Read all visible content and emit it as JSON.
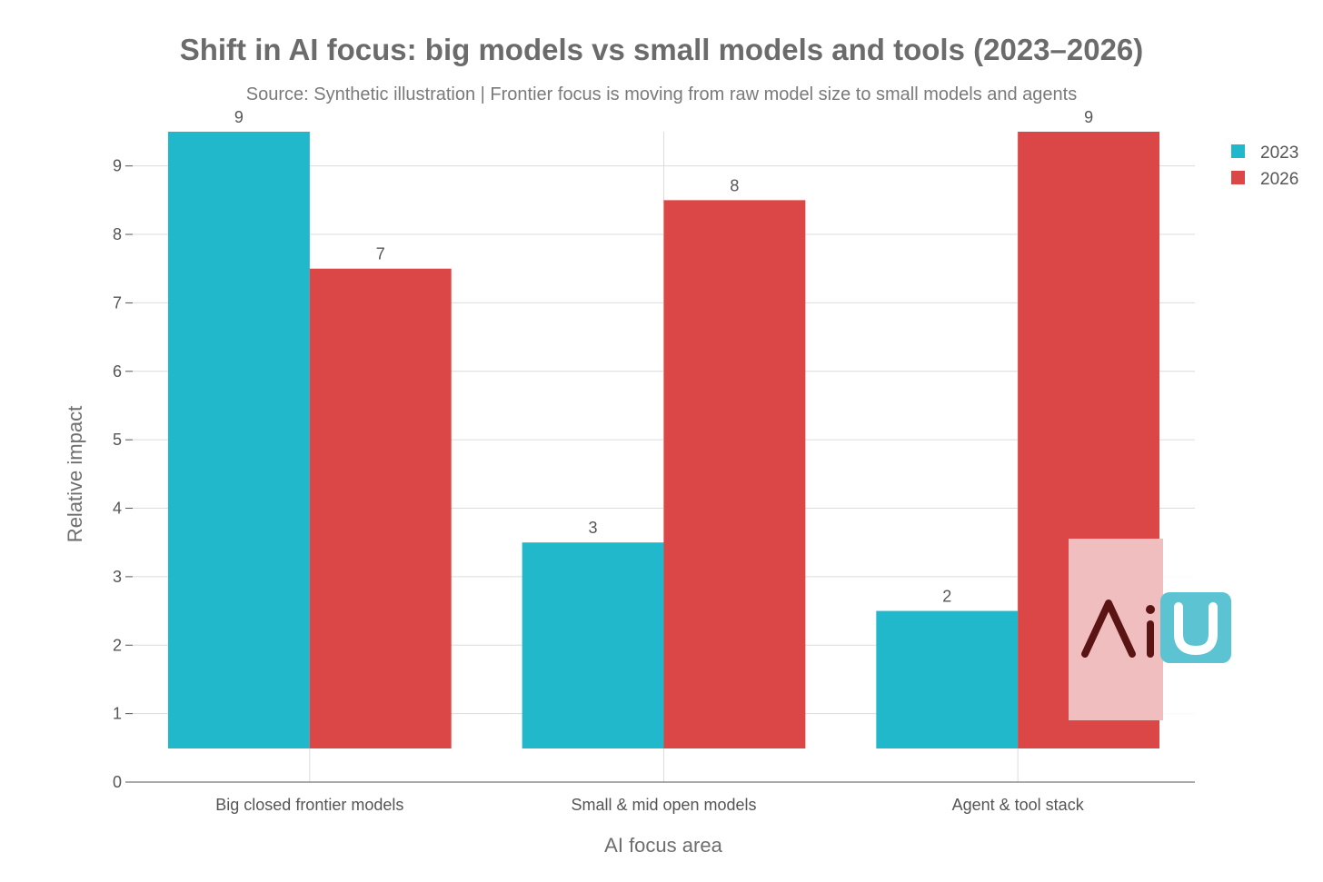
{
  "chart_data": {
    "type": "bar",
    "title": "Shift in AI focus: big models vs small models and tools (2023–2026)",
    "subtitle": "Source: Synthetic illustration | Frontier focus is moving from raw model size to small models and agents",
    "xlabel": "AI focus area",
    "ylabel": "Relative impact",
    "categories": [
      "Big closed frontier models",
      "Small & mid open models",
      "Agent & tool stack"
    ],
    "series": [
      {
        "name": "2023",
        "color": "#21b8cc",
        "values": [
          9,
          3,
          2
        ],
        "labels": [
          "9",
          "3",
          "2"
        ]
      },
      {
        "name": "2026",
        "color": "#db4646",
        "values": [
          7,
          8,
          9
        ],
        "labels": [
          "7",
          "8",
          "9"
        ]
      }
    ],
    "ylim": [
      0,
      9.5
    ],
    "yticks": [
      "0",
      "1",
      "2",
      "3",
      "4",
      "5",
      "6",
      "7",
      "8",
      "9"
    ],
    "grid": true,
    "legend_position": "top-right",
    "watermark": {
      "text": "AiU",
      "colors": {
        "letters": "#5a1414",
        "tile": "#5cc3d3",
        "panel": "#f0bebe"
      }
    }
  }
}
